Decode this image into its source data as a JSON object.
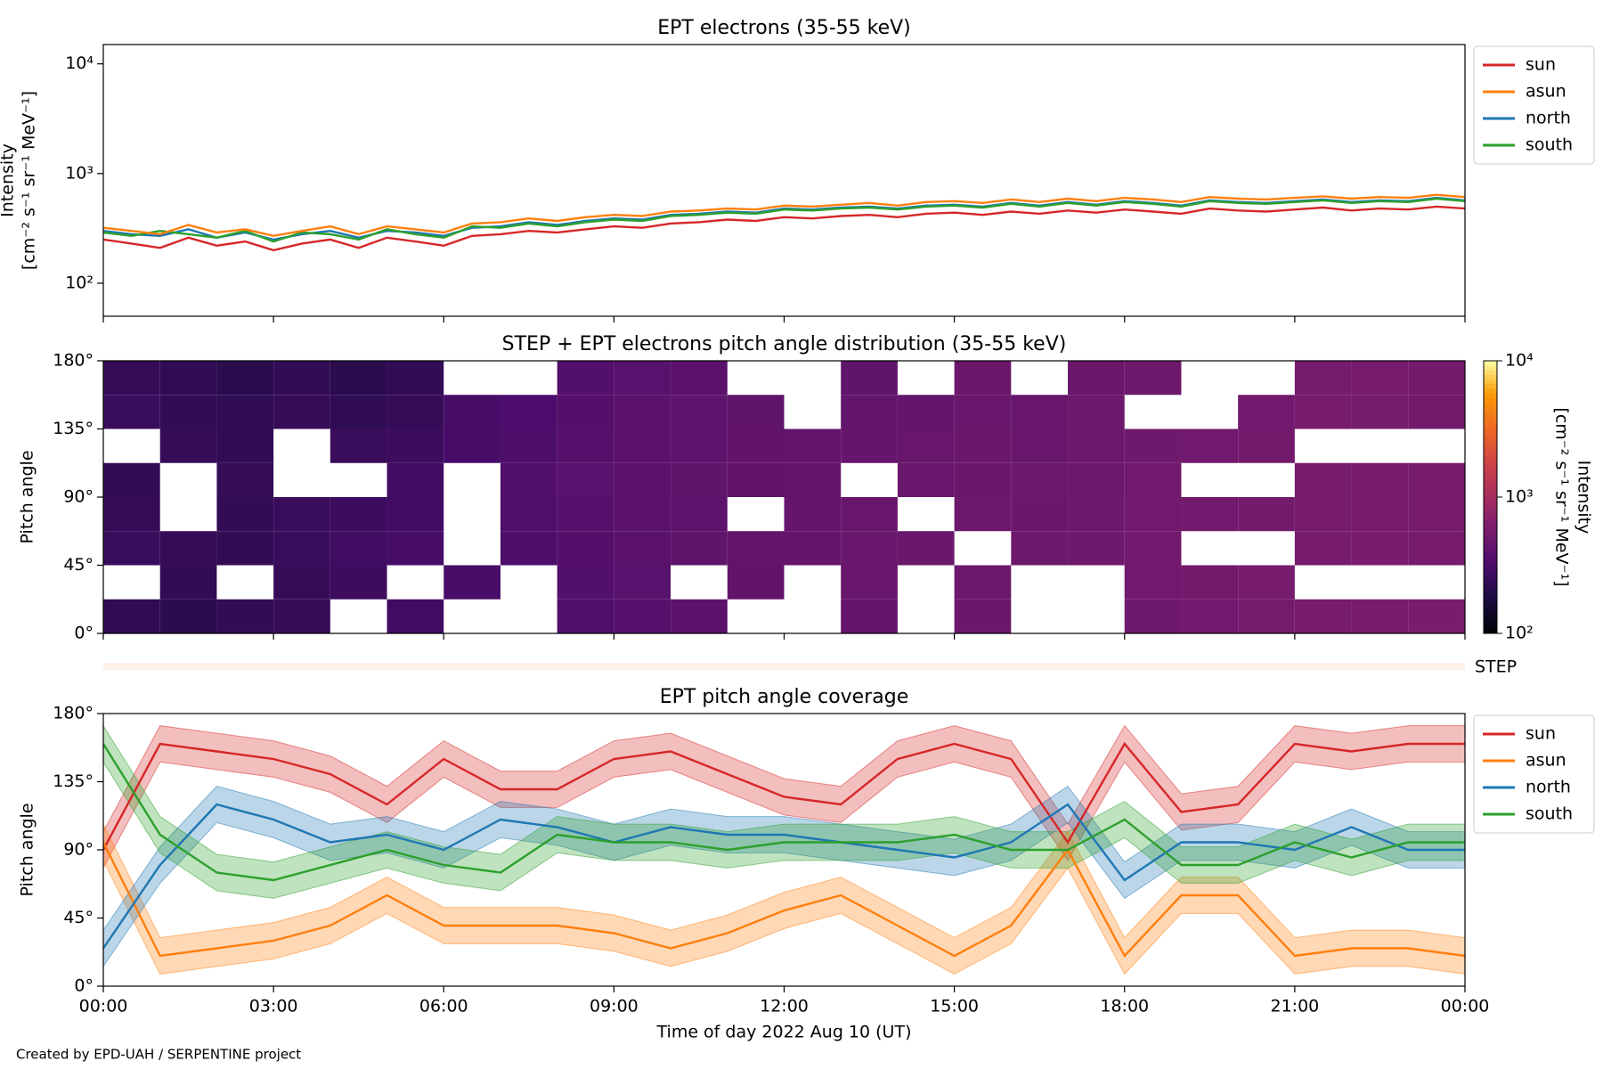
{
  "footer": "Created by EPD-UAH / SERPENTINE project",
  "chart_data": [
    {
      "type": "line",
      "title": "EPT electrons (35-55 keV)",
      "ylabel": [
        "Intensity",
        "[cm⁻² s⁻¹ sr⁻¹ MeV⁻¹]"
      ],
      "log_y": true,
      "ylim": [
        50,
        15000
      ],
      "yticks": [
        {
          "value": 100,
          "label": "10²"
        },
        {
          "value": 1000,
          "label": "10³"
        },
        {
          "value": 10000,
          "label": "10⁴"
        }
      ],
      "xlim": [
        0,
        24
      ],
      "xticks": [
        0,
        3,
        6,
        9,
        12,
        15,
        18,
        21,
        24
      ],
      "legend": "right",
      "x": [
        0,
        0.5,
        1,
        1.5,
        2,
        2.5,
        3,
        3.5,
        4,
        4.5,
        5,
        5.5,
        6,
        6.5,
        7,
        7.5,
        8,
        8.5,
        9,
        9.5,
        10,
        10.5,
        11,
        11.5,
        12,
        12.5,
        13,
        13.5,
        14,
        14.5,
        15,
        15.5,
        16,
        16.5,
        17,
        17.5,
        18,
        18.5,
        19,
        19.5,
        20,
        20.5,
        21,
        21.5,
        22,
        22.5,
        23,
        23.5,
        24
      ],
      "series": [
        {
          "name": "sun",
          "color": "#d62728",
          "values": [
            250,
            230,
            210,
            260,
            220,
            240,
            200,
            230,
            250,
            210,
            260,
            240,
            220,
            270,
            280,
            300,
            290,
            310,
            330,
            320,
            350,
            360,
            380,
            370,
            400,
            390,
            410,
            420,
            400,
            430,
            440,
            420,
            450,
            430,
            460,
            440,
            470,
            450,
            430,
            480,
            460,
            450,
            470,
            490,
            460,
            480,
            470,
            500,
            480
          ]
        },
        {
          "name": "asun",
          "color": "#ff7f0e",
          "values": [
            320,
            300,
            280,
            340,
            290,
            310,
            270,
            300,
            330,
            280,
            330,
            310,
            290,
            350,
            360,
            390,
            370,
            400,
            420,
            410,
            450,
            460,
            480,
            470,
            510,
            500,
            520,
            540,
            510,
            550,
            560,
            540,
            580,
            550,
            590,
            560,
            600,
            580,
            550,
            610,
            590,
            580,
            600,
            620,
            590,
            610,
            600,
            640,
            610
          ]
        },
        {
          "name": "north",
          "color": "#1f77b4",
          "values": [
            300,
            280,
            270,
            310,
            260,
            290,
            250,
            280,
            300,
            260,
            300,
            290,
            270,
            320,
            330,
            360,
            340,
            370,
            390,
            380,
            420,
            430,
            450,
            440,
            480,
            470,
            490,
            500,
            480,
            510,
            520,
            500,
            540,
            510,
            550,
            520,
            560,
            540,
            510,
            570,
            550,
            540,
            560,
            580,
            550,
            570,
            560,
            600,
            570
          ]
        },
        {
          "name": "south",
          "color": "#2ca02c",
          "values": [
            290,
            270,
            300,
            280,
            260,
            300,
            240,
            290,
            280,
            250,
            310,
            280,
            260,
            330,
            320,
            350,
            330,
            360,
            380,
            370,
            410,
            420,
            440,
            430,
            470,
            460,
            480,
            490,
            470,
            500,
            510,
            490,
            530,
            500,
            540,
            510,
            550,
            530,
            500,
            560,
            540,
            530,
            550,
            570,
            540,
            560,
            550,
            590,
            560
          ]
        }
      ]
    },
    {
      "type": "heatmap",
      "title": "STEP + EPT electrons pitch angle distribution (35-55 keV)",
      "ylabel": [
        "Pitch angle"
      ],
      "ylim": [
        0,
        180
      ],
      "yticks": [
        {
          "value": 0,
          "label": "0°"
        },
        {
          "value": 45,
          "label": "45°"
        },
        {
          "value": 90,
          "label": "90°"
        },
        {
          "value": 135,
          "label": "135°"
        },
        {
          "value": 180,
          "label": "180°"
        }
      ],
      "xlim": [
        0,
        24
      ],
      "xticks": [
        0,
        3,
        6,
        9,
        12,
        15,
        18,
        21,
        24
      ],
      "xbins": [
        0,
        1,
        2,
        3,
        4,
        5,
        6,
        7,
        8,
        9,
        10,
        11,
        12,
        13,
        14,
        15,
        16,
        17,
        18,
        19,
        20,
        21,
        22,
        23,
        24
      ],
      "ybins": [
        0,
        22.5,
        45,
        67.5,
        90,
        112.5,
        135,
        157.5,
        180
      ],
      "z": [
        [
          230,
          220,
          240,
          250,
          null,
          280,
          null,
          null,
          340,
          370,
          400,
          null,
          null,
          450,
          null,
          480,
          null,
          null,
          510,
          530,
          550,
          560,
          570,
          580
        ],
        [
          null,
          240,
          null,
          250,
          270,
          null,
          310,
          null,
          350,
          380,
          null,
          430,
          null,
          460,
          null,
          490,
          null,
          null,
          520,
          540,
          560,
          null,
          null,
          null
        ],
        [
          260,
          250,
          240,
          260,
          280,
          300,
          null,
          330,
          360,
          390,
          420,
          440,
          450,
          470,
          480,
          null,
          500,
          510,
          530,
          null,
          null,
          570,
          580,
          560
        ],
        [
          250,
          null,
          240,
          260,
          270,
          290,
          null,
          340,
          370,
          390,
          410,
          null,
          450,
          460,
          null,
          490,
          480,
          510,
          520,
          530,
          540,
          560,
          560,
          570
        ],
        [
          240,
          null,
          250,
          null,
          null,
          280,
          null,
          350,
          380,
          400,
          420,
          430,
          440,
          null,
          470,
          480,
          490,
          500,
          520,
          null,
          null,
          560,
          570,
          560
        ],
        [
          null,
          250,
          240,
          null,
          260,
          270,
          300,
          330,
          370,
          400,
          410,
          430,
          440,
          450,
          460,
          480,
          470,
          500,
          510,
          520,
          540,
          null,
          null,
          null
        ],
        [
          260,
          240,
          230,
          250,
          230,
          250,
          300,
          320,
          360,
          390,
          410,
          420,
          null,
          440,
          450,
          470,
          460,
          490,
          null,
          null,
          530,
          560,
          550,
          540
        ],
        [
          250,
          230,
          220,
          240,
          220,
          240,
          null,
          null,
          350,
          380,
          400,
          null,
          null,
          420,
          null,
          480,
          null,
          480,
          500,
          null,
          null,
          550,
          560,
          540
        ]
      ],
      "colormap": "inferno",
      "log_color": true,
      "clim": [
        100,
        10000
      ],
      "cticks": [
        {
          "value": 100,
          "label": "10²"
        },
        {
          "value": 1000,
          "label": "10³"
        },
        {
          "value": 10000,
          "label": "10⁴"
        }
      ],
      "clabel": [
        "Intensity",
        "[cm⁻² s⁻¹ sr⁻¹ MeV⁻¹]"
      ],
      "step_label": "STEP"
    },
    {
      "type": "band",
      "title": "EPT pitch angle coverage",
      "ylabel": [
        "Pitch angle"
      ],
      "xlabel": "Time of day 2022 Aug 10 (UT)",
      "ylim": [
        0,
        180
      ],
      "yticks": [
        {
          "value": 0,
          "label": "0°"
        },
        {
          "value": 45,
          "label": "45°"
        },
        {
          "value": 90,
          "label": "90°"
        },
        {
          "value": 135,
          "label": "135°"
        },
        {
          "value": 180,
          "label": "180°"
        }
      ],
      "xlim": [
        0,
        24
      ],
      "xticks": [
        {
          "value": 0,
          "label": "00:00"
        },
        {
          "value": 3,
          "label": "03:00"
        },
        {
          "value": 6,
          "label": "06:00"
        },
        {
          "value": 9,
          "label": "09:00"
        },
        {
          "value": 12,
          "label": "12:00"
        },
        {
          "value": 15,
          "label": "15:00"
        },
        {
          "value": 18,
          "label": "18:00"
        },
        {
          "value": 21,
          "label": "21:00"
        },
        {
          "value": 24,
          "label": "00:00"
        }
      ],
      "legend": "right",
      "x": [
        0,
        1,
        2,
        3,
        4,
        5,
        6,
        7,
        8,
        9,
        10,
        11,
        12,
        13,
        14,
        15,
        16,
        17,
        18,
        19,
        20,
        21,
        22,
        23,
        24
      ],
      "series": [
        {
          "name": "sun",
          "color": "#d62728",
          "error": 12,
          "values": [
            90,
            160,
            155,
            150,
            140,
            120,
            150,
            130,
            130,
            150,
            155,
            140,
            125,
            120,
            150,
            160,
            150,
            95,
            160,
            115,
            120,
            160,
            155,
            160,
            160
          ]
        },
        {
          "name": "asun",
          "color": "#ff7f0e",
          "error": 12,
          "values": [
            95,
            20,
            25,
            30,
            40,
            60,
            40,
            40,
            40,
            35,
            25,
            35,
            50,
            60,
            40,
            20,
            40,
            90,
            20,
            60,
            60,
            20,
            25,
            25,
            20
          ]
        },
        {
          "name": "north",
          "color": "#1f77b4",
          "error": 12,
          "values": [
            25,
            80,
            120,
            110,
            95,
            100,
            90,
            110,
            105,
            95,
            105,
            100,
            100,
            95,
            90,
            85,
            95,
            120,
            70,
            95,
            95,
            90,
            105,
            90,
            90
          ]
        },
        {
          "name": "south",
          "color": "#2ca02c",
          "error": 12,
          "values": [
            160,
            100,
            75,
            70,
            80,
            90,
            80,
            75,
            100,
            95,
            95,
            90,
            95,
            95,
            95,
            100,
            90,
            90,
            110,
            80,
            80,
            95,
            85,
            95,
            95
          ]
        }
      ]
    }
  ]
}
